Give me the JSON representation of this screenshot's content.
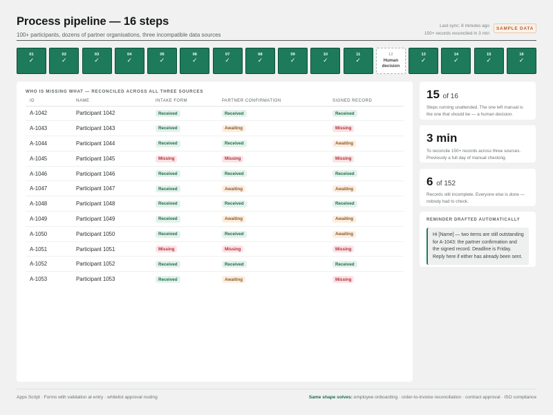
{
  "header": {
    "title": "Process pipeline — 16 steps",
    "subtitle": "100+ participants, dozens of partner organisations, three incompatible data sources",
    "last_sync": "Last sync: 8 minutes ago",
    "reconciled": "150+ records reconciled in 3 min",
    "badge": "SAMPLE DATA"
  },
  "steps": [
    {
      "num": "01",
      "status": "✓"
    },
    {
      "num": "02",
      "status": "✓"
    },
    {
      "num": "03",
      "status": "✓"
    },
    {
      "num": "04",
      "status": "✓"
    },
    {
      "num": "05",
      "status": "✓"
    },
    {
      "num": "06",
      "status": "✓"
    },
    {
      "num": "07",
      "status": "✓"
    },
    {
      "num": "08",
      "status": "✓"
    },
    {
      "num": "09",
      "status": "✓"
    },
    {
      "num": "10",
      "status": "✓"
    },
    {
      "num": "11",
      "status": "✓"
    },
    {
      "num": "12",
      "label": "Human decision"
    },
    {
      "num": "13",
      "status": "✓"
    },
    {
      "num": "14",
      "status": "✓"
    },
    {
      "num": "15",
      "status": "✓"
    },
    {
      "num": "16",
      "status": "✓"
    }
  ],
  "table": {
    "heading": "WHO IS MISSING WHAT — RECONCILED ACROSS ALL THREE SOURCES",
    "columns": [
      "ID",
      "NAME",
      "INTAKE FORM",
      "PARTNER CONFIRMATION",
      "SIGNED RECORD"
    ],
    "rows": [
      {
        "id": "A-1042",
        "name": "Participant 1042",
        "intake": "Received",
        "partner": "Received",
        "signed": "Received"
      },
      {
        "id": "A-1043",
        "name": "Participant 1043",
        "intake": "Received",
        "partner": "Awaiting",
        "signed": "Missing"
      },
      {
        "id": "A-1044",
        "name": "Participant 1044",
        "intake": "Received",
        "partner": "Received",
        "signed": "Awaiting"
      },
      {
        "id": "A-1045",
        "name": "Participant 1045",
        "intake": "Missing",
        "partner": "Missing",
        "signed": "Missing"
      },
      {
        "id": "A-1046",
        "name": "Participant 1046",
        "intake": "Received",
        "partner": "Received",
        "signed": "Received"
      },
      {
        "id": "A-1047",
        "name": "Participant 1047",
        "intake": "Received",
        "partner": "Awaiting",
        "signed": "Awaiting"
      },
      {
        "id": "A-1048",
        "name": "Participant 1048",
        "intake": "Received",
        "partner": "Received",
        "signed": "Received"
      },
      {
        "id": "A-1049",
        "name": "Participant 1049",
        "intake": "Received",
        "partner": "Awaiting",
        "signed": "Awaiting"
      },
      {
        "id": "A-1050",
        "name": "Participant 1050",
        "intake": "Received",
        "partner": "Received",
        "signed": "Awaiting"
      },
      {
        "id": "A-1051",
        "name": "Participant 1051",
        "intake": "Missing",
        "partner": "Missing",
        "signed": "Missing"
      },
      {
        "id": "A-1052",
        "name": "Participant 1052",
        "intake": "Received",
        "partner": "Received",
        "signed": "Received"
      },
      {
        "id": "A-1053",
        "name": "Participant 1053",
        "intake": "Received",
        "partner": "Awaiting",
        "signed": "Missing"
      }
    ]
  },
  "cards": {
    "steps": {
      "value": "15",
      "of": "of 16",
      "caption": "Steps running unattended. The one left manual is the one that should be — a human decision."
    },
    "time": {
      "value": "3 min",
      "caption": "To reconcile 150+ records across three sources. Previously a full day of manual checking."
    },
    "incomplete": {
      "value": "6",
      "of": "of 152",
      "caption": "Records still incomplete. Everyone else is done — nobody had to check."
    },
    "reminder": {
      "title": "REMINDER DRAFTED AUTOMATICALLY",
      "text": "Hi [Name] — two items are still outstanding for A-1043: the partner confirmation and the signed record. Deadline is Friday. Reply here if either has already been sent."
    }
  },
  "footer": {
    "left": "Apps Script · Forms with validation at entry · whitelist approval routing",
    "right_label": "Same shape solves:",
    "right_text": "employee onboarding · order-to-invoice reconciliation · contract approval · ISO compliance"
  }
}
